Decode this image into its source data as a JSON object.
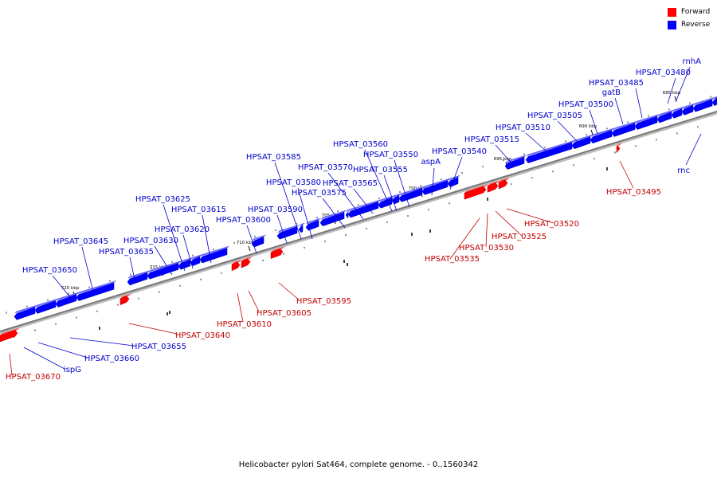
{
  "caption": "Helicobacter pylori Sat464, complete genome. - 0..1560342",
  "legend": {
    "items": [
      {
        "label": "Forward",
        "color": "#ff0000"
      },
      {
        "label": "Reverse",
        "color": "#0000ff"
      }
    ]
  },
  "colors": {
    "forward": "#ff0000",
    "forward_dark": "#b20000",
    "reverse": "#0000ff",
    "reverse_dark": "#0000aa",
    "label_forward": "#c00000",
    "label_reverse": "#0000cc",
    "backbone": "#777777"
  },
  "scale_labels": [
    "685 kbp",
    "690 kbp",
    "695 kbp",
    "700 kbp",
    "705 kbp",
    "710 kbp",
    "715 kbp",
    "720 kbp"
  ],
  "genes": [
    {
      "name": "rnhA",
      "strand": "reverse"
    },
    {
      "name": "HPSAT_03480",
      "strand": "reverse"
    },
    {
      "name": "HPSAT_03485",
      "strand": "reverse"
    },
    {
      "name": "gatB",
      "strand": "reverse"
    },
    {
      "name": "HPSAT_03500",
      "strand": "reverse"
    },
    {
      "name": "HPSAT_03505",
      "strand": "reverse"
    },
    {
      "name": "HPSAT_03510",
      "strand": "reverse"
    },
    {
      "name": "HPSAT_03515",
      "strand": "reverse"
    },
    {
      "name": "HPSAT_03540",
      "strand": "reverse"
    },
    {
      "name": "aspA",
      "strand": "reverse"
    },
    {
      "name": "HPSAT_03550",
      "strand": "reverse"
    },
    {
      "name": "HPSAT_03555",
      "strand": "reverse"
    },
    {
      "name": "HPSAT_03560",
      "strand": "reverse"
    },
    {
      "name": "HPSAT_03565",
      "strand": "reverse"
    },
    {
      "name": "HPSAT_03570",
      "strand": "reverse"
    },
    {
      "name": "HPSAT_03575",
      "strand": "reverse"
    },
    {
      "name": "HPSAT_03580",
      "strand": "reverse"
    },
    {
      "name": "HPSAT_03585",
      "strand": "reverse"
    },
    {
      "name": "HPSAT_03590",
      "strand": "reverse"
    },
    {
      "name": "HPSAT_03600",
      "strand": "reverse"
    },
    {
      "name": "HPSAT_03615",
      "strand": "reverse"
    },
    {
      "name": "HPSAT_03620",
      "strand": "reverse"
    },
    {
      "name": "HPSAT_03625",
      "strand": "reverse"
    },
    {
      "name": "HPSAT_03630",
      "strand": "reverse"
    },
    {
      "name": "HPSAT_03635",
      "strand": "reverse"
    },
    {
      "name": "HPSAT_03645",
      "strand": "reverse"
    },
    {
      "name": "HPSAT_03650",
      "strand": "reverse"
    },
    {
      "name": "rnc",
      "strand": "reverse"
    },
    {
      "name": "HPSAT_03655",
      "strand": "reverse"
    },
    {
      "name": "HPSAT_03660",
      "strand": "reverse"
    },
    {
      "name": "ispG",
      "strand": "reverse"
    },
    {
      "name": "HPSAT_03495",
      "strand": "forward"
    },
    {
      "name": "HPSAT_03520",
      "strand": "forward"
    },
    {
      "name": "HPSAT_03525",
      "strand": "forward"
    },
    {
      "name": "HPSAT_03530",
      "strand": "forward"
    },
    {
      "name": "HPSAT_03535",
      "strand": "forward"
    },
    {
      "name": "HPSAT_03595",
      "strand": "forward"
    },
    {
      "name": "HPSAT_03605",
      "strand": "forward"
    },
    {
      "name": "HPSAT_03610",
      "strand": "forward"
    },
    {
      "name": "HPSAT_03640",
      "strand": "forward"
    },
    {
      "name": "HPSAT_03670",
      "strand": "forward"
    }
  ]
}
